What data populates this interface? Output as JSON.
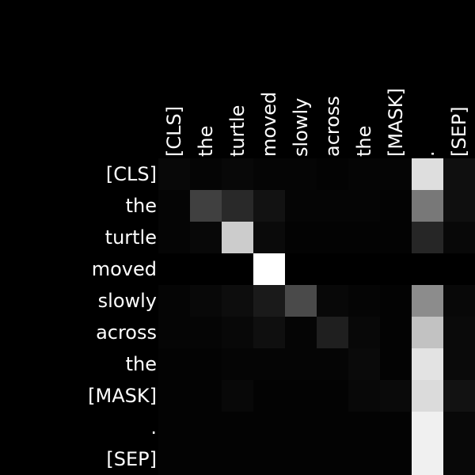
{
  "chart_data": {
    "type": "heatmap",
    "title": "",
    "xlabel": "",
    "ylabel": "",
    "x_tokens": [
      "[CLS]",
      "the",
      "turtle",
      "moved",
      "slowly",
      "across",
      "the",
      "[MASK]",
      ".",
      "[SEP]"
    ],
    "y_tokens": [
      "[CLS]",
      "the",
      "turtle",
      "moved",
      "slowly",
      "across",
      "the",
      "[MASK]",
      ".",
      "[SEP]"
    ],
    "colormap": "grayscale",
    "value_range": [
      0,
      1
    ],
    "grid": false,
    "values": [
      [
        0.03,
        0.02,
        0.03,
        0.02,
        0.02,
        0.01,
        0.02,
        0.02,
        0.87,
        0.06
      ],
      [
        0.02,
        0.25,
        0.16,
        0.07,
        0.02,
        0.02,
        0.02,
        0.01,
        0.47,
        0.06
      ],
      [
        0.02,
        0.03,
        0.8,
        0.04,
        0.01,
        0.01,
        0.01,
        0.01,
        0.15,
        0.03
      ],
      [
        0.0,
        0.0,
        0.0,
        1.0,
        0.0,
        0.0,
        0.0,
        0.0,
        0.0,
        0.0
      ],
      [
        0.02,
        0.03,
        0.05,
        0.1,
        0.29,
        0.03,
        0.02,
        0.01,
        0.55,
        0.03
      ],
      [
        0.02,
        0.02,
        0.03,
        0.06,
        0.02,
        0.12,
        0.03,
        0.01,
        0.76,
        0.04
      ],
      [
        0.01,
        0.01,
        0.02,
        0.02,
        0.02,
        0.02,
        0.04,
        0.01,
        0.89,
        0.04
      ],
      [
        0.01,
        0.01,
        0.03,
        0.01,
        0.01,
        0.01,
        0.03,
        0.04,
        0.86,
        0.07
      ],
      [
        0.01,
        0.01,
        0.01,
        0.01,
        0.01,
        0.01,
        0.01,
        0.01,
        0.94,
        0.03
      ],
      [
        0.01,
        0.01,
        0.01,
        0.01,
        0.01,
        0.01,
        0.01,
        0.01,
        0.94,
        0.03
      ]
    ]
  }
}
